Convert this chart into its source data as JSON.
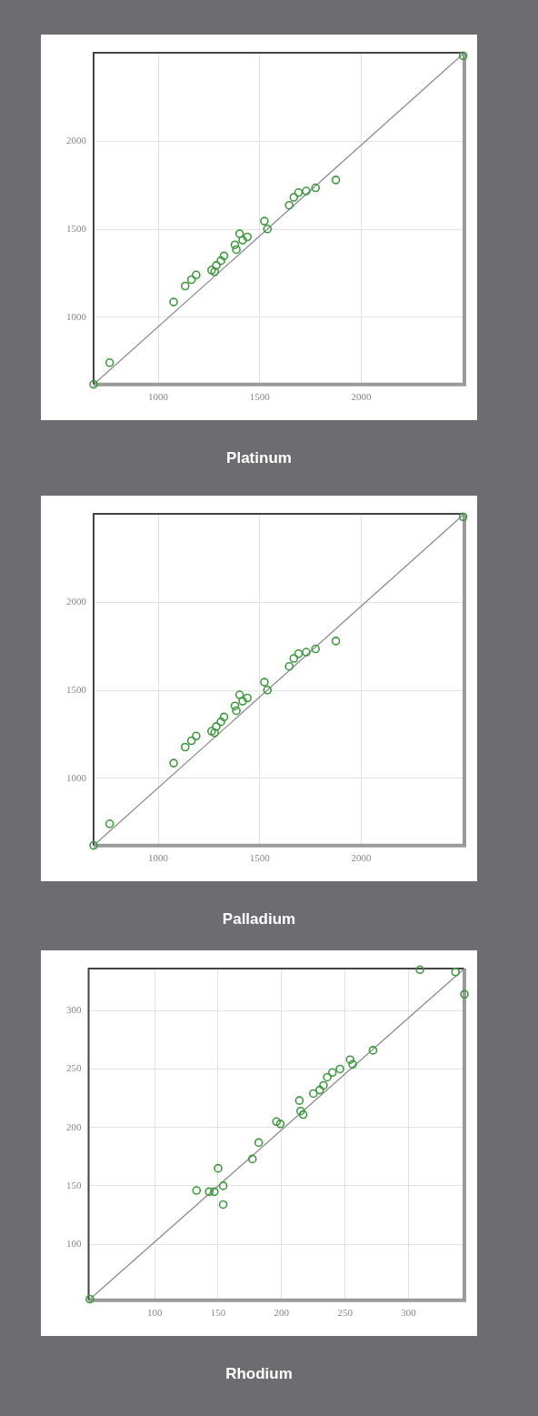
{
  "chart_data": [
    {
      "type": "scatter",
      "title": "Platinum",
      "xlim": [
        682,
        2508
      ],
      "ylim": [
        617,
        2503
      ],
      "xticks": [
        1000,
        1500,
        2000
      ],
      "yticks": [
        1000,
        1500,
        2000
      ],
      "grid": true,
      "legend": false,
      "marker": "circle",
      "series": [
        {
          "type": "scatter",
          "color": "#3c9a3c",
          "x": [
            682,
            761,
            1076,
            1133,
            1164,
            1187,
            1263,
            1278,
            1286,
            1309,
            1324,
            1378,
            1385,
            1401,
            1416,
            1439,
            1523,
            1538,
            1645,
            1668,
            1691,
            1729,
            1775,
            1875,
            2502
          ],
          "values": [
            618,
            741,
            1086,
            1177,
            1213,
            1240,
            1267,
            1258,
            1294,
            1321,
            1348,
            1411,
            1384,
            1474,
            1438,
            1456,
            1546,
            1501,
            1636,
            1681,
            1708,
            1717,
            1735,
            1780,
            2486
          ]
        },
        {
          "type": "line",
          "color": "#8c8c8c",
          "marker": "none",
          "x": [
            682,
            2508
          ],
          "values": [
            617,
            2503
          ]
        }
      ]
    },
    {
      "type": "scatter",
      "title": "Palladium",
      "xlim": [
        682,
        2508
      ],
      "ylim": [
        617,
        2503
      ],
      "xticks": [
        1000,
        1500,
        2000
      ],
      "yticks": [
        1000,
        1500,
        2000
      ],
      "grid": true,
      "legend": false,
      "marker": "circle",
      "series": [
        {
          "type": "scatter",
          "color": "#3c9a3c",
          "x": [
            682,
            761,
            1076,
            1133,
            1164,
            1187,
            1263,
            1278,
            1286,
            1309,
            1324,
            1378,
            1385,
            1401,
            1416,
            1439,
            1523,
            1538,
            1645,
            1668,
            1691,
            1729,
            1775,
            1875,
            2502
          ],
          "values": [
            618,
            741,
            1086,
            1177,
            1213,
            1240,
            1267,
            1258,
            1294,
            1321,
            1348,
            1411,
            1384,
            1474,
            1438,
            1456,
            1546,
            1501,
            1636,
            1681,
            1708,
            1717,
            1735,
            1780,
            2486
          ]
        },
        {
          "type": "line",
          "color": "#8c8c8c",
          "marker": "none",
          "x": [
            682,
            2508
          ],
          "values": [
            617,
            2503
          ]
        }
      ]
    },
    {
      "type": "scatter",
      "title": "Rhodium",
      "xlim": [
        48,
        344
      ],
      "ylim": [
        52,
        336
      ],
      "xticks": [
        100,
        150,
        200,
        250,
        300
      ],
      "yticks": [
        100,
        150,
        200,
        250,
        300
      ],
      "grid": true,
      "legend": false,
      "marker": "circle",
      "series": [
        {
          "type": "scatter",
          "color": "#3c9a3c",
          "x": [
            49,
            133,
            143,
            147,
            150,
            154,
            154,
            177,
            182,
            196,
            199,
            214,
            215,
            217,
            225,
            230,
            233,
            236,
            240,
            246,
            254,
            256,
            272,
            309,
            337,
            344
          ],
          "values": [
            53,
            146,
            145,
            145,
            165,
            150,
            134,
            173,
            187,
            205,
            203,
            223,
            214,
            211,
            229,
            232,
            236,
            243,
            247,
            250,
            258,
            254,
            266,
            335,
            333,
            314
          ]
        },
        {
          "type": "line",
          "color": "#8c8c8c",
          "marker": "none",
          "x": [
            48,
            344
          ],
          "values": [
            52,
            336
          ]
        }
      ]
    }
  ]
}
